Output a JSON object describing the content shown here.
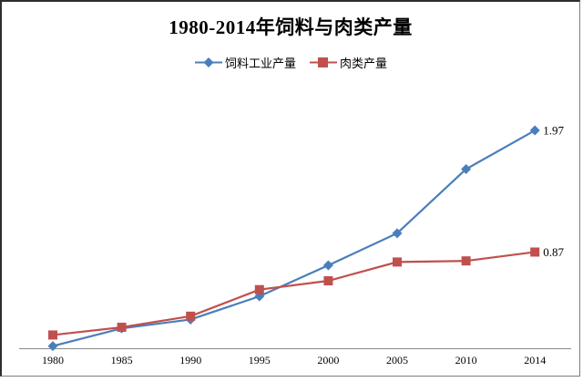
{
  "chart_data": {
    "type": "line",
    "title": "1980-2014年饲料与肉类产量",
    "categories": [
      "1980",
      "1985",
      "1990",
      "1995",
      "2000",
      "2005",
      "2010",
      "2014"
    ],
    "series": [
      {
        "name": "饲料工业产量",
        "marker": "diamond",
        "color": "#4A7EBB",
        "values": [
          0.02,
          0.18,
          0.26,
          0.47,
          0.75,
          1.04,
          1.62,
          1.97
        ],
        "end_label": "1.97"
      },
      {
        "name": "肉类产量",
        "marker": "square",
        "color": "#C0504D",
        "values": [
          0.12,
          0.19,
          0.29,
          0.53,
          0.61,
          0.78,
          0.79,
          0.87
        ],
        "end_label": "0.87"
      }
    ],
    "xlabel": "",
    "ylabel": "",
    "ylim": [
      0,
      2.2
    ],
    "grid": false,
    "legend_position": "top",
    "y_axis_shown": false,
    "axis_color": "#8a8a8a",
    "label_color": "#000000"
  }
}
